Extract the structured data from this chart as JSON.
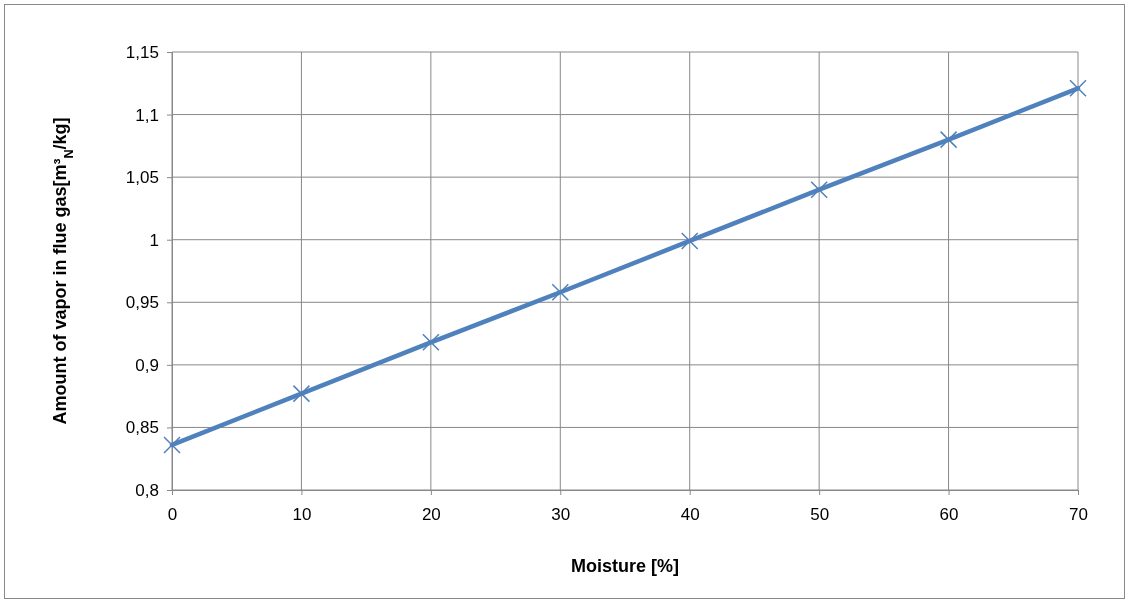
{
  "chart_data": {
    "type": "line",
    "xlabel": "Moisture [%]",
    "ylabel": "Amount of vapor in flue gas[m³$_{N}$/kg]",
    "x": [
      0,
      10,
      20,
      30,
      40,
      50,
      60,
      70
    ],
    "series": [
      {
        "color": "#4f81bd",
        "values": [
          0.836,
          0.877,
          0.918,
          0.958,
          0.999,
          1.04,
          1.08,
          1.121
        ]
      }
    ],
    "xlim": [
      0,
      70
    ],
    "xticks": [
      0,
      10,
      20,
      30,
      40,
      50,
      60,
      70
    ],
    "ylim": [
      0.8,
      1.15
    ],
    "yticks": [
      {
        "value": 0.8,
        "label": "0,8"
      },
      {
        "value": 0.85,
        "label": "0,85"
      },
      {
        "value": 0.9,
        "label": "0,9"
      },
      {
        "value": 0.95,
        "label": "0,95"
      },
      1,
      {
        "value": 1.05,
        "label": "1,05"
      },
      {
        "value": 1.1,
        "label": "1,1"
      },
      {
        "value": 1.15,
        "label": "1,15"
      }
    ],
    "grid": true,
    "marker": "cross",
    "line_style": "solid"
  }
}
